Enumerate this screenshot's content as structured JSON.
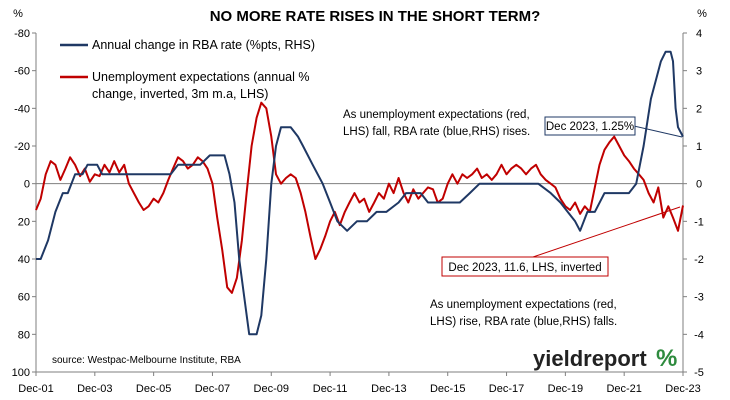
{
  "chart_data": {
    "type": "line",
    "title": "NO MORE RATE RISES IN THE SHORT TERM?",
    "x_tick_labels": [
      "Dec-01",
      "Dec-03",
      "Dec-05",
      "Dec-07",
      "Dec-09",
      "Dec-11",
      "Dec-13",
      "Dec-15",
      "Dec-17",
      "Dec-19",
      "Dec-21",
      "Dec-23"
    ],
    "x_range": [
      2001.92,
      2023.92
    ],
    "left_axis": {
      "unit_label": "%",
      "inverted": true,
      "ylim": [
        -80,
        100
      ],
      "ticks": [
        "-80",
        "-60",
        "-40",
        "-20",
        "0",
        "20",
        "40",
        "60",
        "80",
        "100"
      ]
    },
    "right_axis": {
      "unit_label": "%",
      "ylim": [
        -5,
        4
      ],
      "ticks": [
        "4",
        "3",
        "2",
        "1",
        "0",
        "-1",
        "-2",
        "-3",
        "-4",
        "-5"
      ]
    },
    "legend_placement": "top-left",
    "grid": false,
    "series": [
      {
        "name": "Annual change in RBA rate (%pts, RHS)",
        "axis": "right",
        "color": "#1f3864",
        "points": [
          [
            2001.92,
            -2.0
          ],
          [
            2002.08,
            -2.0
          ],
          [
            2002.33,
            -1.5
          ],
          [
            2002.58,
            -0.75
          ],
          [
            2002.83,
            -0.25
          ],
          [
            2003.0,
            -0.25
          ],
          [
            2003.25,
            0.25
          ],
          [
            2003.5,
            0.25
          ],
          [
            2003.67,
            0.5
          ],
          [
            2004.0,
            0.5
          ],
          [
            2004.17,
            0.25
          ],
          [
            2004.5,
            0.25
          ],
          [
            2005.0,
            0.25
          ],
          [
            2005.5,
            0.25
          ],
          [
            2006.0,
            0.25
          ],
          [
            2006.5,
            0.25
          ],
          [
            2006.75,
            0.5
          ],
          [
            2007.5,
            0.5
          ],
          [
            2007.83,
            0.75
          ],
          [
            2008.33,
            0.75
          ],
          [
            2008.5,
            0.25
          ],
          [
            2008.67,
            -0.5
          ],
          [
            2008.83,
            -2.0
          ],
          [
            2009.0,
            -3.0
          ],
          [
            2009.17,
            -4.0
          ],
          [
            2009.42,
            -4.0
          ],
          [
            2009.58,
            -3.5
          ],
          [
            2009.75,
            -2.0
          ],
          [
            2009.92,
            0.0
          ],
          [
            2010.08,
            1.0
          ],
          [
            2010.25,
            1.5
          ],
          [
            2010.58,
            1.5
          ],
          [
            2010.83,
            1.25
          ],
          [
            2011.0,
            1.0
          ],
          [
            2011.33,
            0.5
          ],
          [
            2011.67,
            0.0
          ],
          [
            2011.92,
            -0.5
          ],
          [
            2012.17,
            -1.0
          ],
          [
            2012.5,
            -1.25
          ],
          [
            2012.83,
            -1.0
          ],
          [
            2013.17,
            -1.0
          ],
          [
            2013.5,
            -0.75
          ],
          [
            2013.83,
            -0.75
          ],
          [
            2014.25,
            -0.5
          ],
          [
            2014.5,
            -0.25
          ],
          [
            2015.0,
            -0.25
          ],
          [
            2015.25,
            -0.5
          ],
          [
            2015.5,
            -0.5
          ],
          [
            2016.0,
            -0.5
          ],
          [
            2016.33,
            -0.5
          ],
          [
            2016.67,
            -0.25
          ],
          [
            2017.0,
            0.0
          ],
          [
            2017.5,
            0.0
          ],
          [
            2018.0,
            0.0
          ],
          [
            2018.5,
            0.0
          ],
          [
            2019.0,
            0.0
          ],
          [
            2019.42,
            -0.25
          ],
          [
            2019.75,
            -0.5
          ],
          [
            2020.0,
            -0.75
          ],
          [
            2020.25,
            -1.0
          ],
          [
            2020.42,
            -1.25
          ],
          [
            2020.67,
            -0.75
          ],
          [
            2020.92,
            -0.75
          ],
          [
            2021.25,
            -0.25
          ],
          [
            2021.5,
            -0.25
          ],
          [
            2021.92,
            -0.25
          ],
          [
            2022.08,
            -0.25
          ],
          [
            2022.33,
            0.0
          ],
          [
            2022.58,
            1.0
          ],
          [
            2022.83,
            2.25
          ],
          [
            2023.0,
            2.75
          ],
          [
            2023.17,
            3.25
          ],
          [
            2023.33,
            3.5
          ],
          [
            2023.5,
            3.5
          ],
          [
            2023.58,
            3.25
          ],
          [
            2023.67,
            2.0
          ],
          [
            2023.75,
            1.5
          ],
          [
            2023.92,
            1.25
          ]
        ]
      },
      {
        "name": "Unemployment expectations (annual % change, inverted, 3m m.a, LHS)",
        "axis": "left",
        "color": "#c00000",
        "points": [
          [
            2001.92,
            14
          ],
          [
            2002.08,
            8
          ],
          [
            2002.25,
            -5
          ],
          [
            2002.42,
            -12
          ],
          [
            2002.58,
            -10
          ],
          [
            2002.75,
            -2
          ],
          [
            2002.92,
            -8
          ],
          [
            2003.08,
            -14
          ],
          [
            2003.25,
            -10
          ],
          [
            2003.42,
            -4
          ],
          [
            2003.58,
            -8
          ],
          [
            2003.75,
            -1
          ],
          [
            2003.92,
            -5
          ],
          [
            2004.08,
            -4
          ],
          [
            2004.25,
            -10
          ],
          [
            2004.42,
            -6
          ],
          [
            2004.58,
            -12
          ],
          [
            2004.75,
            -6
          ],
          [
            2004.92,
            -10
          ],
          [
            2005.08,
            0
          ],
          [
            2005.25,
            5
          ],
          [
            2005.42,
            10
          ],
          [
            2005.58,
            14
          ],
          [
            2005.75,
            12
          ],
          [
            2005.92,
            8
          ],
          [
            2006.08,
            10
          ],
          [
            2006.25,
            5
          ],
          [
            2006.42,
            -2
          ],
          [
            2006.58,
            -8
          ],
          [
            2006.75,
            -14
          ],
          [
            2006.92,
            -12
          ],
          [
            2007.08,
            -8
          ],
          [
            2007.25,
            -10
          ],
          [
            2007.42,
            -14
          ],
          [
            2007.58,
            -12
          ],
          [
            2007.75,
            -8
          ],
          [
            2007.92,
            0
          ],
          [
            2008.08,
            18
          ],
          [
            2008.25,
            35
          ],
          [
            2008.42,
            55
          ],
          [
            2008.58,
            58
          ],
          [
            2008.75,
            50
          ],
          [
            2008.92,
            30
          ],
          [
            2009.08,
            5
          ],
          [
            2009.25,
            -20
          ],
          [
            2009.42,
            -35
          ],
          [
            2009.58,
            -43
          ],
          [
            2009.75,
            -40
          ],
          [
            2009.92,
            -25
          ],
          [
            2010.08,
            -5
          ],
          [
            2010.25,
            0
          ],
          [
            2010.42,
            -3
          ],
          [
            2010.58,
            -5
          ],
          [
            2010.75,
            -3
          ],
          [
            2010.92,
            5
          ],
          [
            2011.08,
            15
          ],
          [
            2011.25,
            28
          ],
          [
            2011.42,
            40
          ],
          [
            2011.58,
            35
          ],
          [
            2011.75,
            28
          ],
          [
            2011.92,
            20
          ],
          [
            2012.08,
            15
          ],
          [
            2012.25,
            22
          ],
          [
            2012.42,
            15
          ],
          [
            2012.58,
            10
          ],
          [
            2012.75,
            5
          ],
          [
            2012.92,
            10
          ],
          [
            2013.08,
            8
          ],
          [
            2013.25,
            15
          ],
          [
            2013.42,
            10
          ],
          [
            2013.58,
            5
          ],
          [
            2013.75,
            8
          ],
          [
            2013.92,
            0
          ],
          [
            2014.08,
            5
          ],
          [
            2014.25,
            -3
          ],
          [
            2014.42,
            5
          ],
          [
            2014.58,
            10
          ],
          [
            2014.75,
            3
          ],
          [
            2014.92,
            8
          ],
          [
            2015.08,
            5
          ],
          [
            2015.25,
            2
          ],
          [
            2015.42,
            3
          ],
          [
            2015.58,
            10
          ],
          [
            2015.75,
            8
          ],
          [
            2015.92,
            0
          ],
          [
            2016.08,
            -5
          ],
          [
            2016.25,
            0
          ],
          [
            2016.42,
            -5
          ],
          [
            2016.58,
            -3
          ],
          [
            2016.75,
            -5
          ],
          [
            2016.92,
            -8
          ],
          [
            2017.08,
            -3
          ],
          [
            2017.25,
            -5
          ],
          [
            2017.42,
            -2
          ],
          [
            2017.58,
            -5
          ],
          [
            2017.75,
            -10
          ],
          [
            2017.92,
            -5
          ],
          [
            2018.08,
            -8
          ],
          [
            2018.25,
            -10
          ],
          [
            2018.42,
            -8
          ],
          [
            2018.58,
            -5
          ],
          [
            2018.75,
            -8
          ],
          [
            2018.92,
            -10
          ],
          [
            2019.08,
            -5
          ],
          [
            2019.25,
            -2
          ],
          [
            2019.42,
            0
          ],
          [
            2019.58,
            2
          ],
          [
            2019.75,
            8
          ],
          [
            2019.92,
            12
          ],
          [
            2020.08,
            14
          ],
          [
            2020.25,
            10
          ],
          [
            2020.42,
            16
          ],
          [
            2020.58,
            12
          ],
          [
            2020.75,
            15
          ],
          [
            2020.92,
            2
          ],
          [
            2021.08,
            -10
          ],
          [
            2021.25,
            -18
          ],
          [
            2021.42,
            -22
          ],
          [
            2021.58,
            -25
          ],
          [
            2021.75,
            -20
          ],
          [
            2021.92,
            -15
          ],
          [
            2022.08,
            -12
          ],
          [
            2022.25,
            -8
          ],
          [
            2022.42,
            -5
          ],
          [
            2022.58,
            -2
          ],
          [
            2022.75,
            5
          ],
          [
            2022.92,
            10
          ],
          [
            2023.08,
            2
          ],
          [
            2023.25,
            18
          ],
          [
            2023.42,
            12
          ],
          [
            2023.58,
            18
          ],
          [
            2023.75,
            25
          ],
          [
            2023.92,
            11.6
          ]
        ]
      }
    ],
    "annotations": [
      {
        "lines": [
          "As unemployment expectations (red,",
          "LHS) fall, RBA rate (blue,RHS) rises."
        ]
      },
      {
        "lines": [
          "As unemployment expectations (red,",
          "LHS) rise, RBA rate (blue,RHS) falls."
        ]
      },
      {
        "text": "Dec 2023, 1.25%",
        "color": "#1f3864"
      },
      {
        "text": "Dec 2023, 11.6, LHS, inverted",
        "color": "#c00000"
      }
    ],
    "source": "source: Westpac-Melbourne Institute, RBA",
    "logo": {
      "text": "yieldreport",
      "mark": "%"
    }
  }
}
